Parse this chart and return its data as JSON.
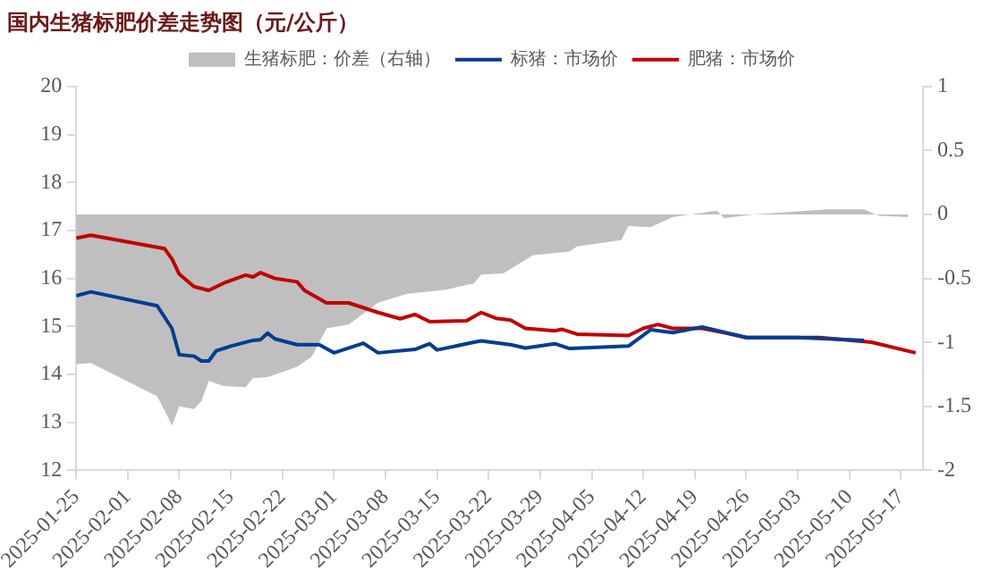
{
  "chart_data": {
    "type": "line",
    "title": "国内生猪标肥价差走势图（元/公斤）",
    "xlim": [
      "2025-01-25",
      "2025-05-20"
    ],
    "xticks": [
      "2025-01-25",
      "2025-02-01",
      "2025-02-08",
      "2025-02-15",
      "2025-02-22",
      "2025-03-01",
      "2025-03-08",
      "2025-03-15",
      "2025-03-22",
      "2025-03-29",
      "2025-04-05",
      "2025-04-12",
      "2025-04-19",
      "2025-04-26",
      "2025-05-03",
      "2025-05-10",
      "2025-05-17"
    ],
    "ylim": [
      12,
      20
    ],
    "yticks": [
      12,
      13,
      14,
      15,
      16,
      17,
      18,
      19,
      20
    ],
    "y2lim": [
      -2,
      1
    ],
    "y2ticks": [
      -2,
      {
        "value": -1.5,
        "label": "-1.5"
      },
      -1,
      {
        "value": -0.5,
        "label": "-0.5"
      },
      0,
      {
        "value": 0.5,
        "label": "0.5"
      },
      1
    ],
    "grid": false,
    "legend": "top",
    "series": [
      {
        "name": "生猪标肥：价差（右轴）",
        "type": "area",
        "axis": "y2",
        "color": "#bfbfbf",
        "x": [
          "2025-01-25",
          "2025-01-27",
          "2025-02-05",
          "2025-02-06",
          "2025-02-07",
          "2025-02-08",
          "2025-02-10",
          "2025-02-11",
          "2025-02-12",
          "2025-02-14",
          "2025-02-17",
          "2025-02-18",
          "2025-02-20",
          "2025-02-24",
          "2025-02-26",
          "2025-02-28",
          "2025-03-03",
          "2025-03-07",
          "2025-03-11",
          "2025-03-16",
          "2025-03-20",
          "2025-03-21",
          "2025-03-24",
          "2025-03-28",
          "2025-04-02",
          "2025-04-03",
          "2025-04-09",
          "2025-04-10",
          "2025-04-13",
          "2025-04-16",
          "2025-04-22",
          "2025-04-23",
          "2025-04-27",
          "2025-05-07",
          "2025-05-12",
          "2025-05-14",
          "2025-05-18"
        ],
        "values": [
          -1.17,
          -1.16,
          -1.42,
          -1.53,
          -1.65,
          -1.5,
          -1.52,
          -1.46,
          -1.3,
          -1.34,
          -1.35,
          -1.28,
          -1.27,
          -1.19,
          -1.11,
          -0.89,
          -0.86,
          -0.69,
          -0.62,
          -0.59,
          -0.54,
          -0.47,
          -0.46,
          -0.32,
          -0.29,
          -0.25,
          -0.2,
          -0.09,
          -0.1,
          -0.02,
          0.03,
          -0.03,
          0.0,
          0.04,
          0.04,
          -0.01,
          -0.02
        ]
      },
      {
        "name": "标猪：市场价",
        "color": "#003d8f",
        "x": [
          "2025-01-25",
          "2025-01-27",
          "2025-02-05",
          "2025-02-07",
          "2025-02-08",
          "2025-02-10",
          "2025-02-11",
          "2025-02-12",
          "2025-02-13",
          "2025-02-15",
          "2025-02-18",
          "2025-02-19",
          "2025-02-20",
          "2025-02-21",
          "2025-02-24",
          "2025-02-27",
          "2025-03-01",
          "2025-03-05",
          "2025-03-07",
          "2025-03-12",
          "2025-03-14",
          "2025-03-15",
          "2025-03-20",
          "2025-03-21",
          "2025-03-25",
          "2025-03-27",
          "2025-03-31",
          "2025-04-02",
          "2025-04-10",
          "2025-04-13",
          "2025-04-16",
          "2025-04-20",
          "2025-04-26",
          "2025-05-03",
          "2025-05-12"
        ],
        "values": [
          15.64,
          15.72,
          15.43,
          14.96,
          14.41,
          14.38,
          14.28,
          14.28,
          14.49,
          14.59,
          14.71,
          14.72,
          14.86,
          14.74,
          14.62,
          14.62,
          14.45,
          14.65,
          14.45,
          14.52,
          14.64,
          14.51,
          14.67,
          14.7,
          14.62,
          14.55,
          14.64,
          14.54,
          14.59,
          14.93,
          14.87,
          14.99,
          14.77,
          14.77,
          14.71
        ]
      },
      {
        "name": "肥猪：市场价",
        "color": "#c00000",
        "x": [
          "2025-01-25",
          "2025-01-27",
          "2025-02-05",
          "2025-02-06",
          "2025-02-07",
          "2025-02-08",
          "2025-02-10",
          "2025-02-12",
          "2025-02-14",
          "2025-02-17",
          "2025-02-18",
          "2025-02-19",
          "2025-02-21",
          "2025-02-24",
          "2025-02-25",
          "2025-02-28",
          "2025-03-03",
          "2025-03-07",
          "2025-03-10",
          "2025-03-12",
          "2025-03-14",
          "2025-03-19",
          "2025-03-21",
          "2025-03-23",
          "2025-03-25",
          "2025-03-27",
          "2025-03-31",
          "2025-04-01",
          "2025-04-03",
          "2025-04-10",
          "2025-04-12",
          "2025-04-14",
          "2025-04-16",
          "2025-04-20",
          "2025-04-23",
          "2025-04-26",
          "2025-05-06",
          "2025-05-13",
          "2025-05-19"
        ],
        "values": [
          16.84,
          16.9,
          16.65,
          16.62,
          16.41,
          16.09,
          15.83,
          15.75,
          15.9,
          16.07,
          16.03,
          16.12,
          16.0,
          15.93,
          15.75,
          15.49,
          15.49,
          15.29,
          15.16,
          15.25,
          15.1,
          15.12,
          15.29,
          15.17,
          15.13,
          14.96,
          14.91,
          14.94,
          14.84,
          14.81,
          14.96,
          15.04,
          14.96,
          14.96,
          14.87,
          14.77,
          14.77,
          14.67,
          14.45
        ]
      }
    ]
  }
}
